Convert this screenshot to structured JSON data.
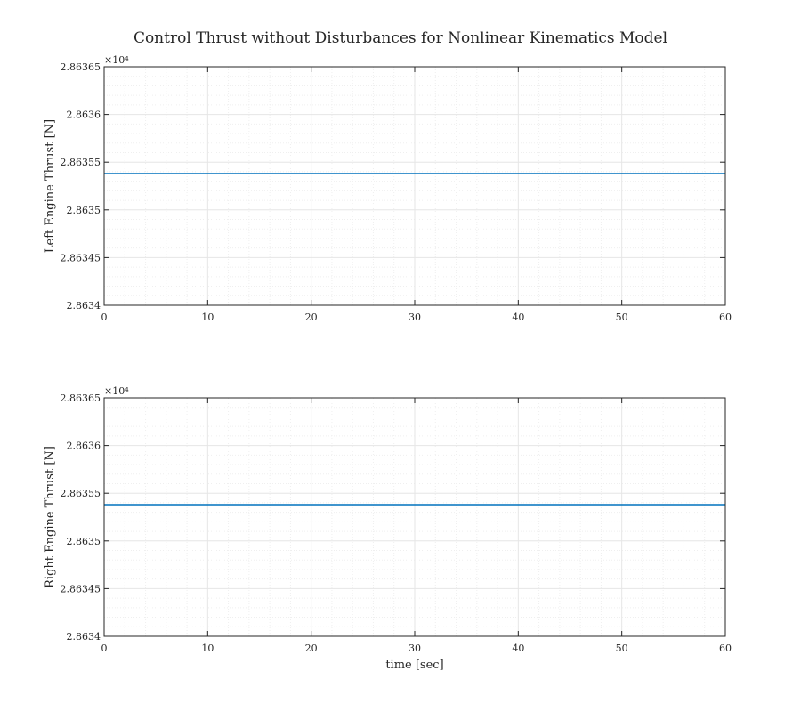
{
  "figure": {
    "title": "Control Thrust without Disturbances for Nonlinear Kinematics Model"
  },
  "chart_data": [
    {
      "type": "line",
      "title": "",
      "xlabel": "",
      "ylabel": "Left Engine Thrust [N]",
      "xlim": [
        0,
        60
      ],
      "ylim": [
        2.8634,
        2.86365
      ],
      "y_exponent_label": "×10⁴",
      "xticks": [
        "0",
        "10",
        "20",
        "30",
        "40",
        "50",
        "60"
      ],
      "yticks": [
        "2.8634",
        "2.86345",
        "2.8635",
        "2.86355",
        "2.8636",
        "2.86365"
      ],
      "grid": true,
      "minor_grid": true,
      "series": [
        {
          "x": [
            0,
            60
          ],
          "y": [
            2.863538,
            2.863538
          ],
          "color": "#0072BD"
        }
      ]
    },
    {
      "type": "line",
      "title": "",
      "xlabel": "time [sec]",
      "ylabel": "Right Engine Thrust [N]",
      "xlim": [
        0,
        60
      ],
      "ylim": [
        2.8634,
        2.86365
      ],
      "y_exponent_label": "×10⁴",
      "xticks": [
        "0",
        "10",
        "20",
        "30",
        "40",
        "50",
        "60"
      ],
      "yticks": [
        "2.8634",
        "2.86345",
        "2.8635",
        "2.86355",
        "2.8636",
        "2.86365"
      ],
      "grid": true,
      "minor_grid": true,
      "series": [
        {
          "x": [
            0,
            60
          ],
          "y": [
            2.863538,
            2.863538
          ],
          "color": "#0072BD"
        }
      ]
    }
  ]
}
